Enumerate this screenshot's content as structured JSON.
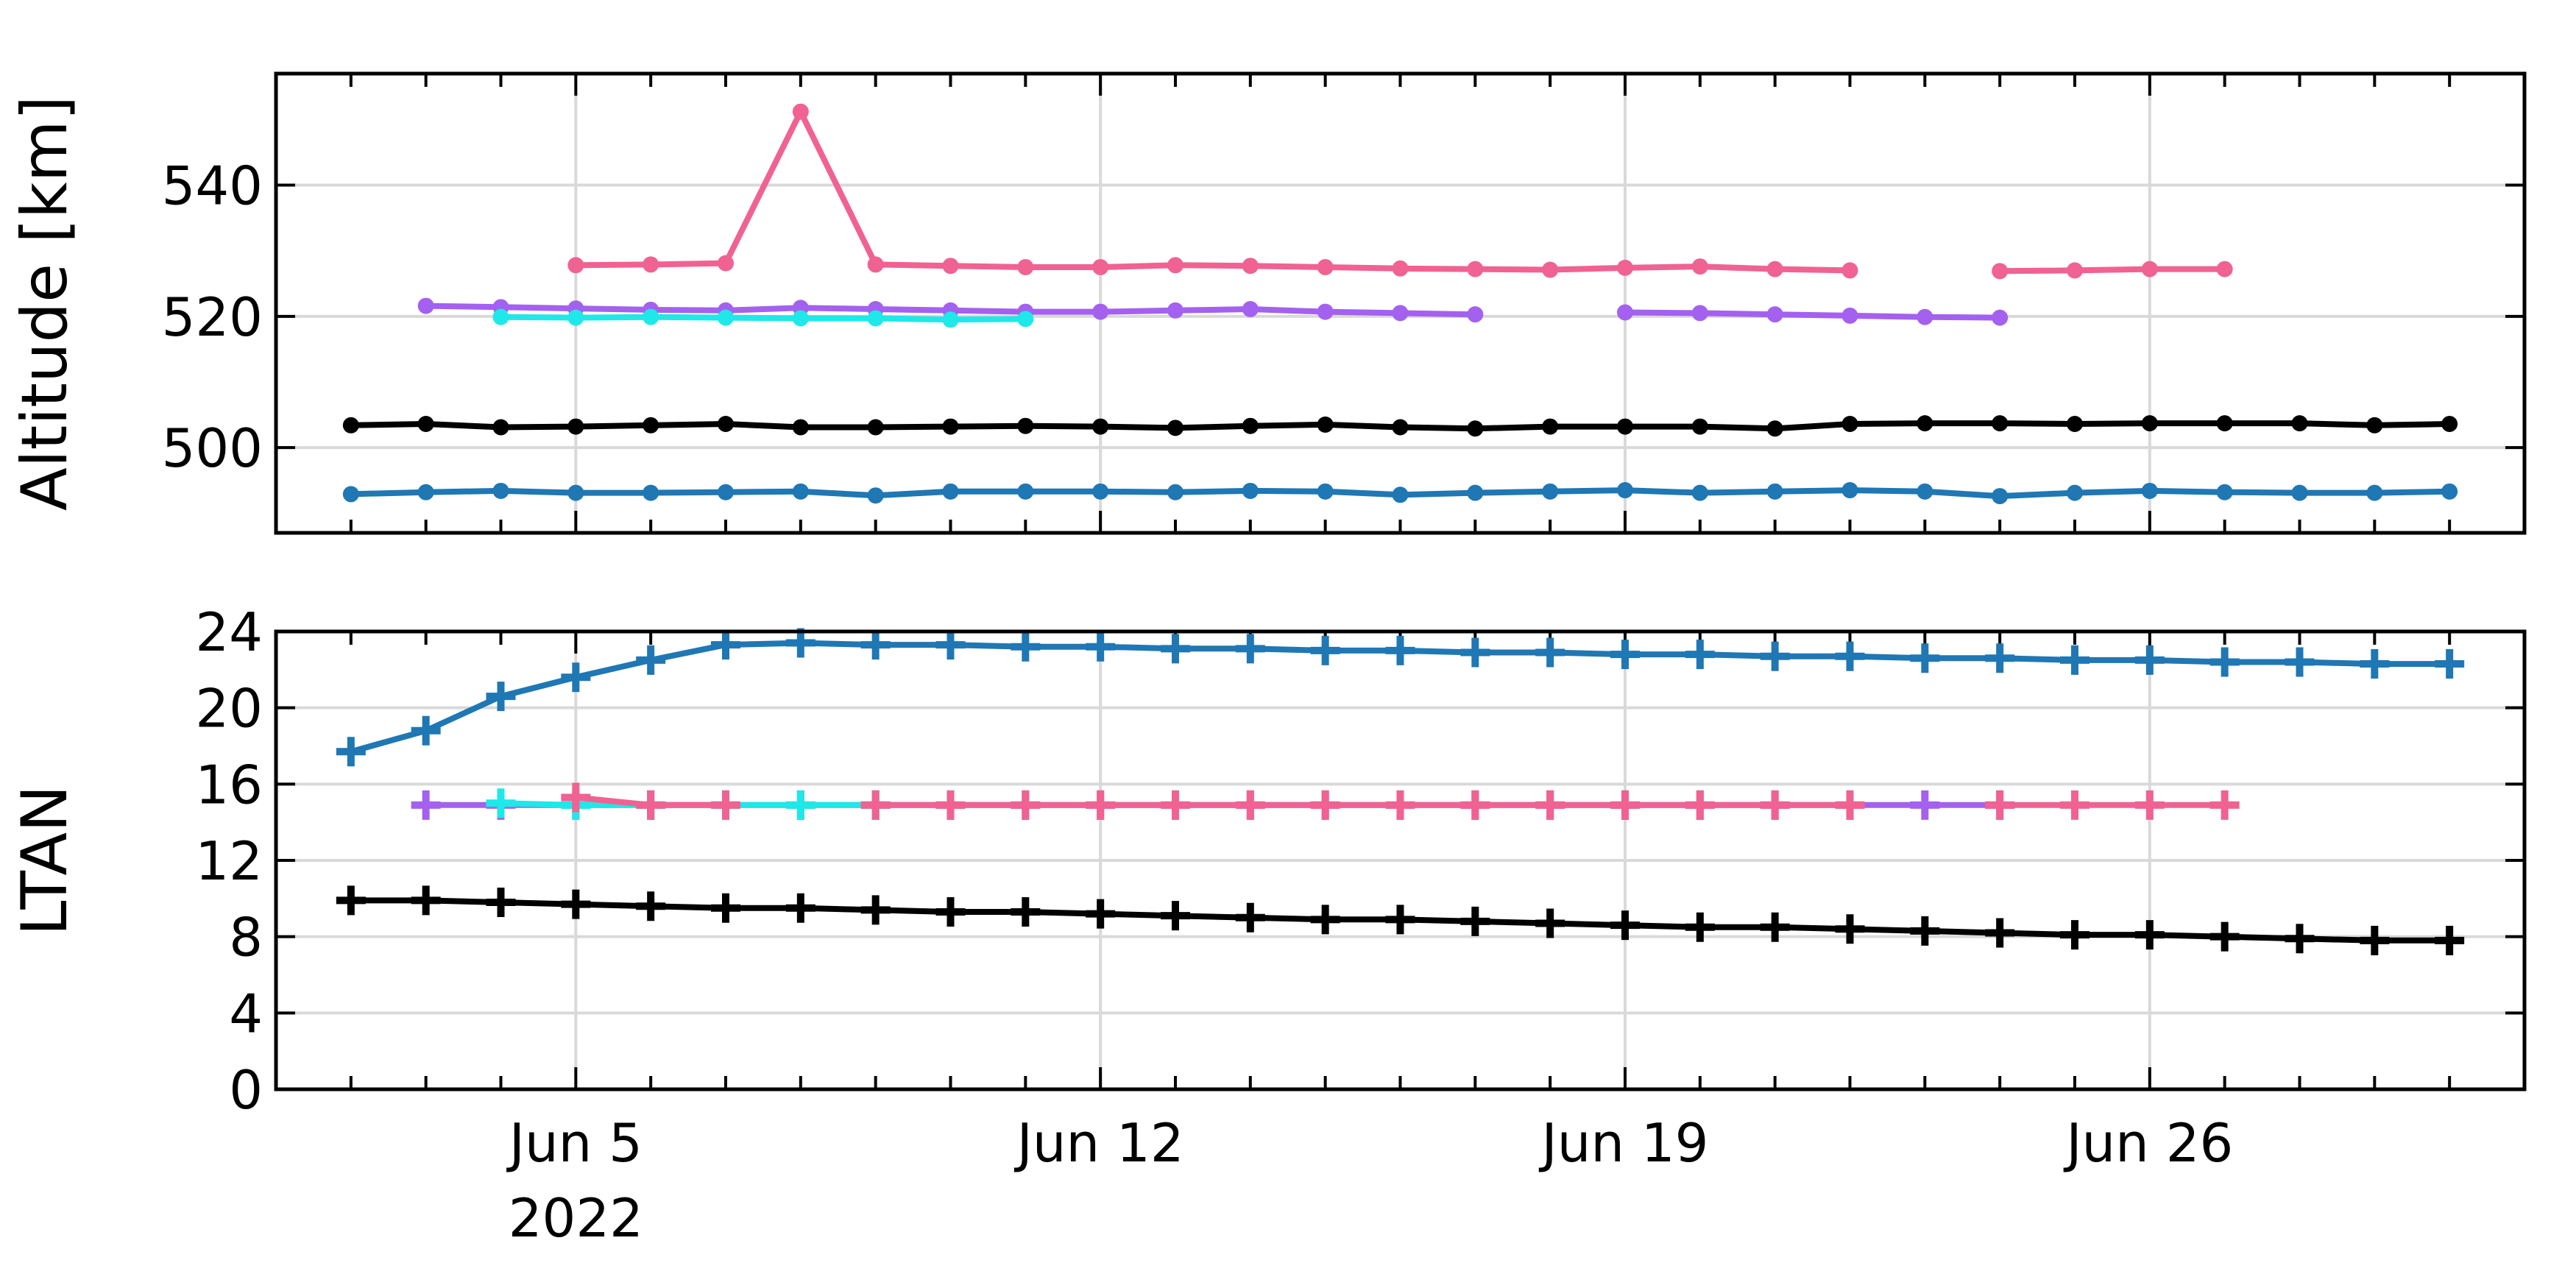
{
  "chart_data": [
    {
      "type": "line",
      "ylabel": "Altitude [km]",
      "yticks": [
        500,
        520,
        540
      ],
      "ylim": [
        487,
        557
      ],
      "grid": true,
      "series": [
        {
          "color": "#f06292",
          "marker": "circle",
          "points": [
            [
              "2022-06-05",
              527.8
            ],
            [
              "2022-06-06",
              527.9
            ],
            [
              "2022-06-07",
              528.1
            ],
            [
              "2022-06-08",
              551.2
            ],
            [
              "2022-06-09",
              527.9
            ],
            [
              "2022-06-10",
              527.7
            ],
            [
              "2022-06-11",
              527.5
            ],
            [
              "2022-06-12",
              527.5
            ],
            [
              "2022-06-13",
              527.8
            ],
            [
              "2022-06-14",
              527.7
            ],
            [
              "2022-06-15",
              527.5
            ],
            [
              "2022-06-16",
              527.3
            ],
            [
              "2022-06-17",
              527.2
            ],
            [
              "2022-06-18",
              527.1
            ],
            [
              "2022-06-19",
              527.4
            ],
            [
              "2022-06-20",
              527.6
            ],
            [
              "2022-06-21",
              527.2
            ],
            [
              "2022-06-22",
              527.0
            ],
            null,
            [
              "2022-06-24",
              526.9
            ],
            [
              "2022-06-25",
              527.0
            ],
            [
              "2022-06-26",
              527.2
            ],
            [
              "2022-06-27",
              527.2
            ]
          ]
        },
        {
          "color": "#a461ef",
          "marker": "circle",
          "points": [
            [
              "2022-06-03",
              521.6
            ],
            [
              "2022-06-04",
              521.4
            ],
            [
              "2022-06-05",
              521.2
            ],
            [
              "2022-06-06",
              521.0
            ],
            [
              "2022-06-07",
              520.9
            ],
            [
              "2022-06-08",
              521.3
            ],
            [
              "2022-06-09",
              521.1
            ],
            [
              "2022-06-10",
              520.9
            ],
            [
              "2022-06-11",
              520.7
            ],
            [
              "2022-06-12",
              520.7
            ],
            [
              "2022-06-13",
              520.9
            ],
            [
              "2022-06-14",
              521.1
            ],
            [
              "2022-06-15",
              520.7
            ],
            [
              "2022-06-16",
              520.5
            ],
            [
              "2022-06-17",
              520.3
            ],
            null,
            [
              "2022-06-19",
              520.6
            ],
            [
              "2022-06-20",
              520.5
            ],
            [
              "2022-06-21",
              520.3
            ],
            [
              "2022-06-22",
              520.1
            ],
            [
              "2022-06-23",
              519.9
            ],
            [
              "2022-06-24",
              519.8
            ]
          ]
        },
        {
          "color": "#1fe8e8",
          "marker": "circle",
          "points": [
            [
              "2022-06-04",
              519.9
            ],
            [
              "2022-06-05",
              519.8
            ],
            [
              "2022-06-06",
              519.9
            ],
            [
              "2022-06-07",
              519.8
            ],
            [
              "2022-06-08",
              519.7
            ],
            [
              "2022-06-09",
              519.7
            ],
            [
              "2022-06-10",
              519.5
            ],
            [
              "2022-06-11",
              519.6
            ]
          ]
        },
        {
          "color": "#000000",
          "marker": "circle",
          "points": [
            [
              "2022-06-02",
              503.4
            ],
            [
              "2022-06-03",
              503.6
            ],
            [
              "2022-06-04",
              503.1
            ],
            [
              "2022-06-05",
              503.2
            ],
            [
              "2022-06-06",
              503.4
            ],
            [
              "2022-06-07",
              503.6
            ],
            [
              "2022-06-08",
              503.1
            ],
            [
              "2022-06-09",
              503.1
            ],
            [
              "2022-06-10",
              503.2
            ],
            [
              "2022-06-11",
              503.3
            ],
            [
              "2022-06-12",
              503.2
            ],
            [
              "2022-06-13",
              503.0
            ],
            [
              "2022-06-14",
              503.3
            ],
            [
              "2022-06-15",
              503.5
            ],
            [
              "2022-06-16",
              503.1
            ],
            [
              "2022-06-17",
              502.9
            ],
            [
              "2022-06-18",
              503.2
            ],
            [
              "2022-06-19",
              503.2
            ],
            [
              "2022-06-20",
              503.2
            ],
            [
              "2022-06-21",
              502.9
            ],
            [
              "2022-06-22",
              503.6
            ],
            [
              "2022-06-23",
              503.7
            ],
            [
              "2022-06-24",
              503.7
            ],
            [
              "2022-06-25",
              503.6
            ],
            [
              "2022-06-26",
              503.7
            ],
            [
              "2022-06-27",
              503.7
            ],
            [
              "2022-06-28",
              503.7
            ],
            [
              "2022-06-29",
              503.4
            ],
            [
              "2022-06-30",
              503.6
            ]
          ]
        },
        {
          "color": "#1f77b4",
          "marker": "circle",
          "points": [
            [
              "2022-06-02",
              492.9
            ],
            [
              "2022-06-03",
              493.2
            ],
            [
              "2022-06-04",
              493.4
            ],
            [
              "2022-06-05",
              493.1
            ],
            [
              "2022-06-06",
              493.1
            ],
            [
              "2022-06-07",
              493.2
            ],
            [
              "2022-06-08",
              493.3
            ],
            [
              "2022-06-09",
              492.7
            ],
            [
              "2022-06-10",
              493.3
            ],
            [
              "2022-06-11",
              493.3
            ],
            [
              "2022-06-12",
              493.3
            ],
            [
              "2022-06-13",
              493.2
            ],
            [
              "2022-06-14",
              493.4
            ],
            [
              "2022-06-15",
              493.3
            ],
            [
              "2022-06-16",
              492.8
            ],
            [
              "2022-06-17",
              493.1
            ],
            [
              "2022-06-18",
              493.3
            ],
            [
              "2022-06-19",
              493.5
            ],
            [
              "2022-06-20",
              493.1
            ],
            [
              "2022-06-21",
              493.3
            ],
            [
              "2022-06-22",
              493.5
            ],
            [
              "2022-06-23",
              493.3
            ],
            [
              "2022-06-24",
              492.6
            ],
            [
              "2022-06-25",
              493.1
            ],
            [
              "2022-06-26",
              493.4
            ],
            [
              "2022-06-27",
              493.2
            ],
            [
              "2022-06-28",
              493.1
            ],
            [
              "2022-06-29",
              493.1
            ],
            [
              "2022-06-30",
              493.3
            ]
          ]
        }
      ]
    },
    {
      "type": "line",
      "ylabel": "LTAN",
      "xlabel": "",
      "yticks": [
        0,
        4,
        8,
        12,
        16,
        20,
        24
      ],
      "ylim": [
        0,
        24
      ],
      "grid": true,
      "xticks": [
        {
          "date": "2022-06-05",
          "label": "Jun 5",
          "sublabel": "2022"
        },
        {
          "date": "2022-06-12",
          "label": "Jun 12"
        },
        {
          "date": "2022-06-19",
          "label": "Jun 19"
        },
        {
          "date": "2022-06-26",
          "label": "Jun 26"
        }
      ],
      "xlim": [
        "2022-06-01T00:00",
        "2022-07-01T00:00"
      ],
      "series": [
        {
          "color": "#1f77b4",
          "marker": "plus",
          "points": [
            [
              "2022-06-02",
              17.7
            ],
            [
              "2022-06-03",
              18.8
            ],
            [
              "2022-06-04",
              20.6
            ],
            [
              "2022-06-05",
              21.6
            ],
            [
              "2022-06-06",
              22.5
            ],
            [
              "2022-06-07",
              23.3
            ],
            [
              "2022-06-08",
              23.4
            ],
            [
              "2022-06-09",
              23.3
            ],
            [
              "2022-06-10",
              23.3
            ],
            [
              "2022-06-11",
              23.2
            ],
            [
              "2022-06-12",
              23.2
            ],
            [
              "2022-06-13",
              23.1
            ],
            [
              "2022-06-14",
              23.1
            ],
            [
              "2022-06-15",
              23.0
            ],
            [
              "2022-06-16",
              23.0
            ],
            [
              "2022-06-17",
              22.9
            ],
            [
              "2022-06-18",
              22.9
            ],
            [
              "2022-06-19",
              22.8
            ],
            [
              "2022-06-20",
              22.8
            ],
            [
              "2022-06-21",
              22.7
            ],
            [
              "2022-06-22",
              22.7
            ],
            [
              "2022-06-23",
              22.6
            ],
            [
              "2022-06-24",
              22.6
            ],
            [
              "2022-06-25",
              22.5
            ],
            [
              "2022-06-26",
              22.5
            ],
            [
              "2022-06-27",
              22.4
            ],
            [
              "2022-06-28",
              22.4
            ],
            [
              "2022-06-29",
              22.3
            ],
            [
              "2022-06-30",
              22.3
            ]
          ]
        },
        {
          "color": "#a461ef",
          "marker": "plus",
          "points": [
            [
              "2022-06-03",
              14.9
            ],
            [
              "2022-06-04",
              14.9
            ],
            [
              "2022-06-05",
              14.9
            ],
            [
              "2022-06-06",
              14.9
            ],
            [
              "2022-06-07",
              14.9
            ],
            [
              "2022-06-08",
              14.9
            ],
            [
              "2022-06-09",
              14.9
            ],
            [
              "2022-06-10",
              14.9
            ],
            [
              "2022-06-11",
              14.9
            ],
            [
              "2022-06-12",
              14.9
            ],
            [
              "2022-06-13",
              14.9
            ],
            [
              "2022-06-14",
              14.9
            ],
            [
              "2022-06-15",
              14.9
            ],
            [
              "2022-06-16",
              14.9
            ],
            [
              "2022-06-17",
              14.9
            ],
            [
              "2022-06-18",
              14.9
            ],
            [
              "2022-06-19",
              14.9
            ],
            [
              "2022-06-20",
              14.9
            ],
            [
              "2022-06-21",
              14.9
            ],
            [
              "2022-06-22",
              14.9
            ],
            [
              "2022-06-23",
              14.9
            ],
            [
              "2022-06-24",
              14.9
            ]
          ]
        },
        {
          "color": "#1fe8e8",
          "marker": "plus",
          "points": [
            [
              "2022-06-04",
              15.0
            ],
            [
              "2022-06-05",
              14.9
            ],
            [
              "2022-06-06",
              14.9
            ],
            [
              "2022-06-07",
              14.9
            ],
            [
              "2022-06-08",
              14.9
            ],
            [
              "2022-06-09",
              14.9
            ]
          ]
        },
        {
          "color": "#f06292",
          "marker": "plus",
          "points": [
            [
              "2022-06-05",
              15.3
            ],
            [
              "2022-06-06",
              14.9
            ],
            [
              "2022-06-07",
              14.9
            ],
            null,
            [
              "2022-06-09",
              14.9
            ],
            [
              "2022-06-10",
              14.9
            ],
            [
              "2022-06-11",
              14.9
            ],
            [
              "2022-06-12",
              14.9
            ],
            [
              "2022-06-13",
              14.9
            ],
            [
              "2022-06-14",
              14.9
            ],
            [
              "2022-06-15",
              14.9
            ],
            [
              "2022-06-16",
              14.9
            ],
            [
              "2022-06-17",
              14.9
            ],
            [
              "2022-06-18",
              14.9
            ],
            [
              "2022-06-19",
              14.9
            ],
            [
              "2022-06-20",
              14.9
            ],
            [
              "2022-06-21",
              14.9
            ],
            [
              "2022-06-22",
              14.9
            ],
            null,
            [
              "2022-06-24",
              14.9
            ],
            [
              "2022-06-25",
              14.9
            ],
            [
              "2022-06-26",
              14.9
            ],
            [
              "2022-06-27",
              14.9
            ]
          ]
        },
        {
          "color": "#000000",
          "marker": "plus",
          "points": [
            [
              "2022-06-02",
              9.9
            ],
            [
              "2022-06-03",
              9.9
            ],
            [
              "2022-06-04",
              9.8
            ],
            [
              "2022-06-05",
              9.7
            ],
            [
              "2022-06-06",
              9.6
            ],
            [
              "2022-06-07",
              9.5
            ],
            [
              "2022-06-08",
              9.5
            ],
            [
              "2022-06-09",
              9.4
            ],
            [
              "2022-06-10",
              9.3
            ],
            [
              "2022-06-11",
              9.3
            ],
            [
              "2022-06-12",
              9.2
            ],
            [
              "2022-06-13",
              9.1
            ],
            [
              "2022-06-14",
              9.0
            ],
            [
              "2022-06-15",
              8.9
            ],
            [
              "2022-06-16",
              8.9
            ],
            [
              "2022-06-17",
              8.8
            ],
            [
              "2022-06-18",
              8.7
            ],
            [
              "2022-06-19",
              8.6
            ],
            [
              "2022-06-20",
              8.5
            ],
            [
              "2022-06-21",
              8.5
            ],
            [
              "2022-06-22",
              8.4
            ],
            [
              "2022-06-23",
              8.3
            ],
            [
              "2022-06-24",
              8.2
            ],
            [
              "2022-06-25",
              8.1
            ],
            [
              "2022-06-26",
              8.1
            ],
            [
              "2022-06-27",
              8.0
            ],
            [
              "2022-06-28",
              7.9
            ],
            [
              "2022-06-29",
              7.8
            ],
            [
              "2022-06-30",
              7.8
            ]
          ]
        }
      ]
    }
  ]
}
